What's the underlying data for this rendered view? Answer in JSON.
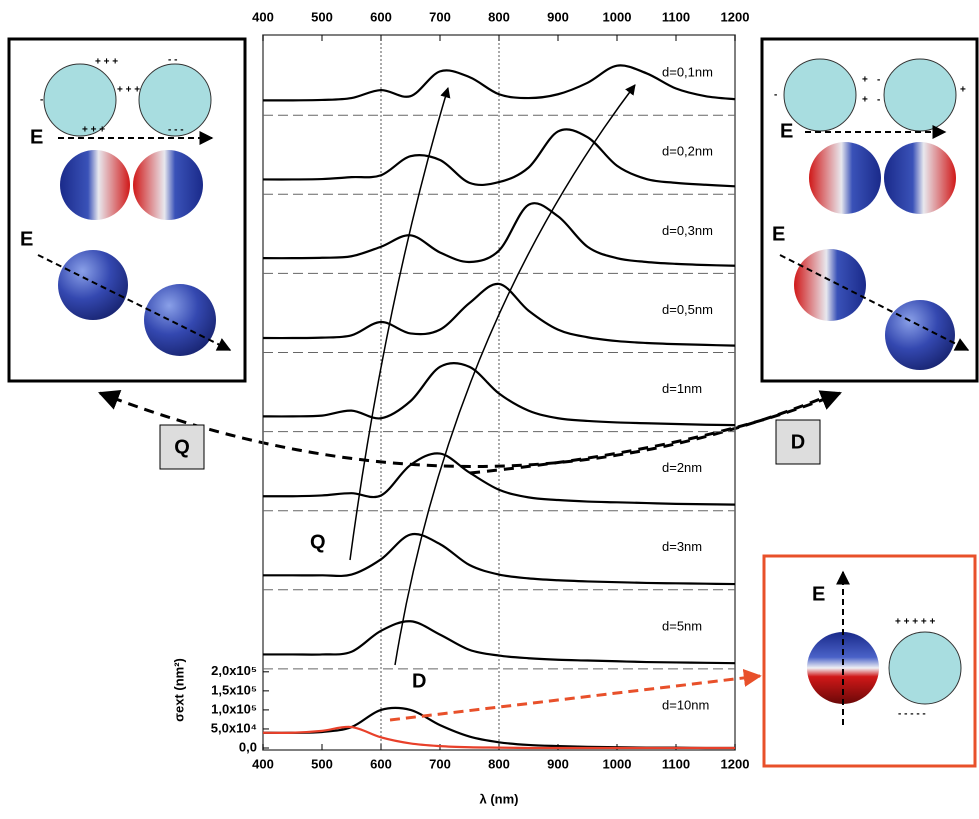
{
  "chart_data": {
    "type": "line",
    "x_label": "λ (nm)",
    "y_label": "σext (nm²)",
    "x": [
      400,
      450,
      500,
      550,
      600,
      650,
      700,
      750,
      800,
      850,
      900,
      950,
      1000,
      1050,
      1100,
      1150,
      1200
    ],
    "xlim": [
      400,
      1200
    ],
    "xticks": [
      400,
      500,
      600,
      700,
      800,
      900,
      1000,
      1100,
      1200
    ],
    "ylim": [
      0,
      210000
    ],
    "yticks": [
      {
        "value": 0,
        "label": "0,0"
      },
      {
        "value": 50000,
        "label": "5,0x10⁴"
      },
      {
        "value": 100000,
        "label": "1,0x10⁵"
      },
      {
        "value": 150000,
        "label": "1,5x10⁵"
      },
      {
        "value": 200000,
        "label": "2,0x10⁵"
      }
    ],
    "vlines": [
      600,
      800
    ],
    "series": [
      {
        "name": "d=0,1nm",
        "color": "#000000",
        "values": [
          39000,
          39000,
          40000,
          45000,
          66000,
          50000,
          115000,
          100000,
          55000,
          45000,
          55000,
          85000,
          130000,
          110000,
          70000,
          50000,
          42000
        ]
      },
      {
        "name": "d=0,2nm",
        "color": "#000000",
        "values": [
          39000,
          39000,
          40000,
          45000,
          50000,
          100000,
          90000,
          30000,
          32000,
          70000,
          165000,
          150000,
          75000,
          40000,
          30000,
          25000,
          21000
        ]
      },
      {
        "name": "d=0,3nm",
        "color": "#000000",
        "values": [
          40000,
          40000,
          41000,
          45000,
          70000,
          100000,
          55000,
          30000,
          60000,
          180000,
          150000,
          70000,
          40000,
          30000,
          25000,
          22000,
          20000
        ]
      },
      {
        "name": "d=0,5nm",
        "color": "#000000",
        "values": [
          38000,
          38000,
          39000,
          45000,
          80000,
          50000,
          60000,
          130000,
          180000,
          110000,
          60000,
          40000,
          30000,
          25000,
          22000,
          20000,
          18000
        ]
      },
      {
        "name": "d=1nm",
        "color": "#000000",
        "values": [
          40000,
          40000,
          42000,
          55000,
          35000,
          80000,
          170000,
          170000,
          100000,
          55000,
          35000,
          28000,
          24000,
          22000,
          20000,
          18000,
          17000
        ]
      },
      {
        "name": "d=2nm",
        "color": "#000000",
        "values": [
          38000,
          38000,
          40000,
          46000,
          40000,
          120000,
          150000,
          100000,
          55000,
          35000,
          28000,
          24000,
          22000,
          20000,
          18000,
          17000,
          16000
        ]
      },
      {
        "name": "d=3nm",
        "color": "#000000",
        "values": [
          38000,
          38000,
          38000,
          40000,
          80000,
          145000,
          120000,
          65000,
          40000,
          30000,
          25000,
          22000,
          20000,
          18000,
          17000,
          16000,
          15000
        ]
      },
      {
        "name": "d=5nm",
        "color": "#000000",
        "values": [
          38000,
          38000,
          38000,
          45000,
          100000,
          125000,
          90000,
          50000,
          35000,
          28000,
          24000,
          22000,
          20000,
          18000,
          17000,
          16000,
          15000
        ]
      },
      {
        "name": "d=10nm",
        "color": "#000000",
        "values": [
          40000,
          40000,
          42000,
          55000,
          100000,
          100000,
          60000,
          30000,
          15000,
          8000,
          5000,
          3000,
          2000,
          1000,
          1000,
          0,
          0
        ]
      }
    ],
    "single_sphere": {
      "color": "#e8402a",
      "values": [
        40000,
        40000,
        45000,
        55000,
        28000,
        12000,
        5000,
        2000,
        1000,
        0,
        0,
        0,
        0,
        0,
        0,
        0,
        0
      ]
    },
    "arrow_labels": [
      "Q",
      "D"
    ],
    "mode_boxes": [
      "Q",
      "D"
    ],
    "insets": {
      "left": {
        "e_labels": [
          "E",
          "E"
        ],
        "charges": [
          "+ + +",
          "-",
          "- -",
          "+ + +",
          "+ + +",
          "- - -"
        ]
      },
      "right": {
        "e_labels": [
          "E",
          "E"
        ],
        "charges": [
          "+",
          "-",
          "+",
          "+",
          "-",
          "-"
        ]
      },
      "bottom": {
        "e_label": "E",
        "charges": [
          "+ + + + +",
          "- - - - -"
        ]
      }
    }
  }
}
